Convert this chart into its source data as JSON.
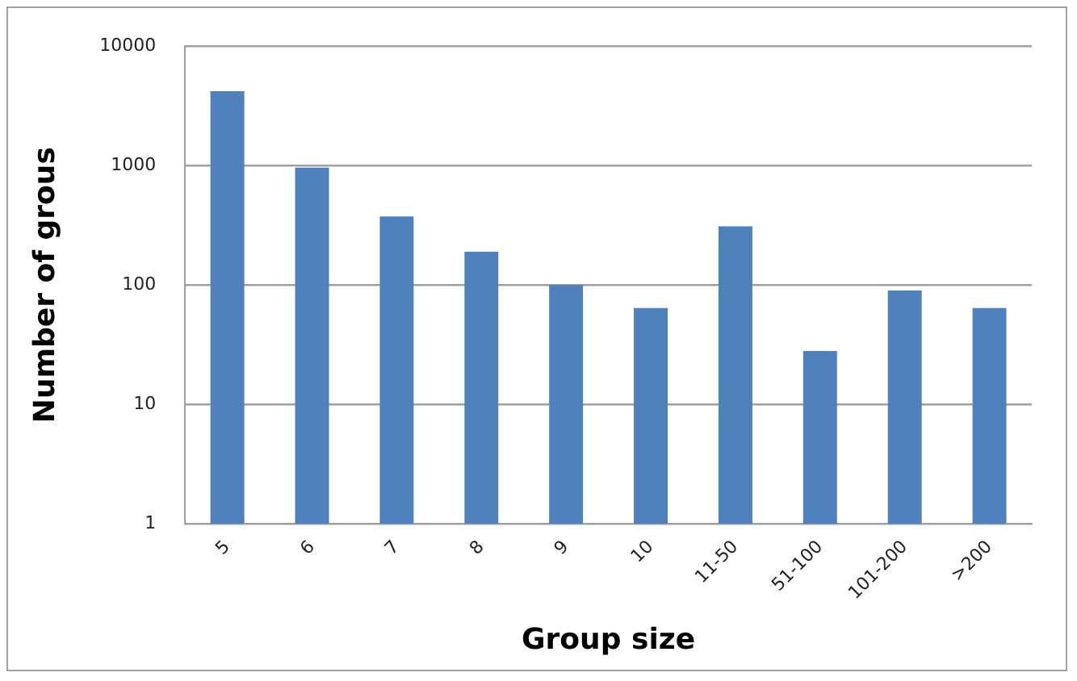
{
  "chart_data": {
    "type": "bar",
    "xlabel": "Group size",
    "ylabel": "Number of grous",
    "categories": [
      "5",
      "6",
      "7",
      "8",
      "9",
      "10",
      "11-50",
      "51-100",
      "101-200",
      ">200"
    ],
    "values": [
      4200,
      960,
      375,
      190,
      100,
      64,
      310,
      28,
      90,
      64
    ],
    "color": "#4f81bd",
    "log": "y",
    "ylim": [
      1,
      10000
    ],
    "yticks": [
      1,
      10,
      100,
      1000,
      10000
    ],
    "grid": "y",
    "legend": false
  }
}
